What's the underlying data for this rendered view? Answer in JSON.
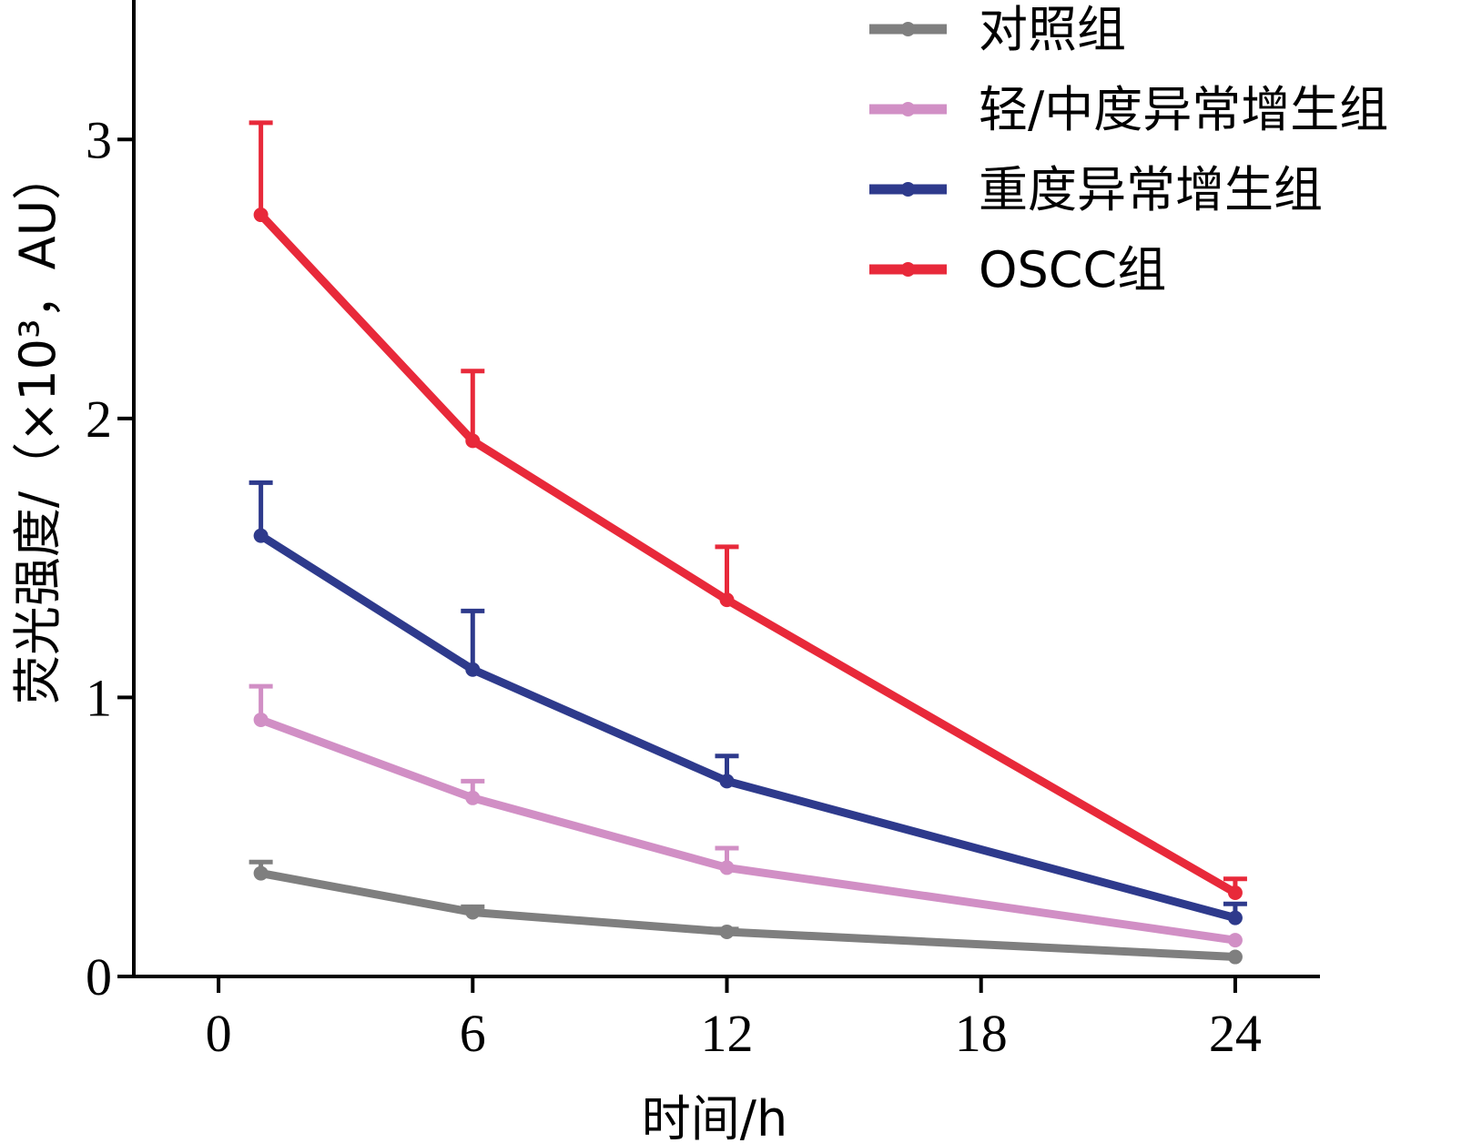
{
  "chart_data": {
    "type": "line",
    "title": "",
    "xlabel": "时间/h",
    "ylabel": "荧光强度/（×10³，AU）",
    "x_ticks": [
      "0",
      "6",
      "12",
      "18",
      "24"
    ],
    "y_ticks": [
      "0",
      "1",
      "2",
      "3"
    ],
    "xlim": [
      -2,
      26
    ],
    "ylim": [
      0,
      3.5
    ],
    "x": [
      1,
      6,
      12,
      24
    ],
    "grid": false,
    "legend": "top-right",
    "series": [
      {
        "name": "对照组",
        "color": "#7f7f7f",
        "values": [
          0.37,
          0.23,
          0.16,
          0.07
        ],
        "errors": [
          0.04,
          0.02,
          0.01,
          0.0
        ]
      },
      {
        "name": "轻/中度异常增生组",
        "color": "#d18fc5",
        "values": [
          0.92,
          0.64,
          0.39,
          0.13
        ],
        "errors": [
          0.12,
          0.06,
          0.07,
          0.0
        ]
      },
      {
        "name": "重度异常增生组",
        "color": "#2e3a8c",
        "values": [
          1.58,
          1.1,
          0.7,
          0.21
        ],
        "errors": [
          0.19,
          0.21,
          0.09,
          0.05
        ]
      },
      {
        "name": "OSCC组",
        "color": "#e8293a",
        "values": [
          2.73,
          1.92,
          1.35,
          0.3
        ],
        "errors": [
          0.33,
          0.25,
          0.19,
          0.05
        ]
      }
    ]
  }
}
